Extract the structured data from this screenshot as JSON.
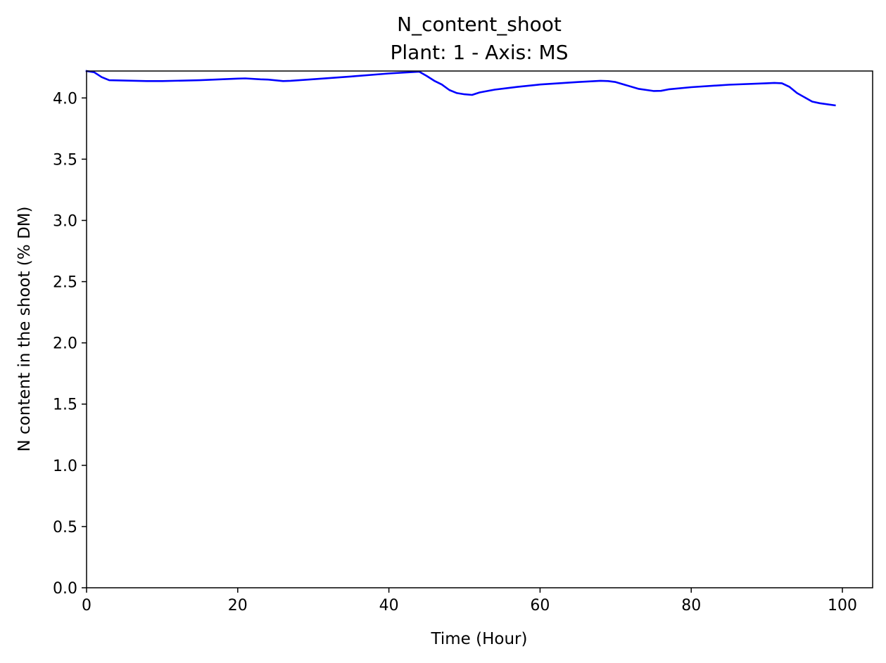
{
  "chart_data": {
    "type": "line",
    "title": "N_content_shoot",
    "subtitle": "Plant: 1 - Axis: MS",
    "xlabel": "Time (Hour)",
    "ylabel": "N content in the shoot (% DM)",
    "xlim": [
      0,
      104
    ],
    "ylim": [
      0,
      4.22
    ],
    "xticks": [
      0,
      20,
      40,
      60,
      80,
      100
    ],
    "yticks": [
      0.0,
      0.5,
      1.0,
      1.5,
      2.0,
      2.5,
      3.0,
      3.5,
      4.0
    ],
    "xtick_labels": [
      "0",
      "20",
      "40",
      "60",
      "80",
      "100"
    ],
    "ytick_labels": [
      "0.0",
      "0.5",
      "1.0",
      "1.5",
      "2.0",
      "2.5",
      "3.0",
      "3.5",
      "4.0"
    ],
    "grid": false,
    "series": [
      {
        "color": "#0000ff",
        "x": [
          0,
          1,
          2,
          3,
          5,
          8,
          10,
          15,
          20,
          21,
          23,
          24,
          26,
          27,
          30,
          35,
          40,
          44,
          45,
          46,
          47,
          48,
          49,
          50,
          51,
          52,
          54,
          57,
          60,
          65,
          68,
          69,
          70,
          73,
          75,
          76,
          77,
          80,
          85,
          90,
          91,
          92,
          93,
          94,
          96,
          97,
          99
        ],
        "y": [
          4.22,
          4.21,
          4.17,
          4.145,
          4.142,
          4.138,
          4.138,
          4.145,
          4.158,
          4.16,
          4.152,
          4.15,
          4.138,
          4.14,
          4.153,
          4.175,
          4.2,
          4.215,
          4.18,
          4.14,
          4.11,
          4.065,
          4.04,
          4.03,
          4.025,
          4.045,
          4.068,
          4.09,
          4.11,
          4.13,
          4.14,
          4.138,
          4.13,
          4.075,
          4.057,
          4.058,
          4.07,
          4.088,
          4.108,
          4.12,
          4.123,
          4.12,
          4.09,
          4.04,
          3.97,
          3.957,
          3.94
        ]
      }
    ]
  }
}
